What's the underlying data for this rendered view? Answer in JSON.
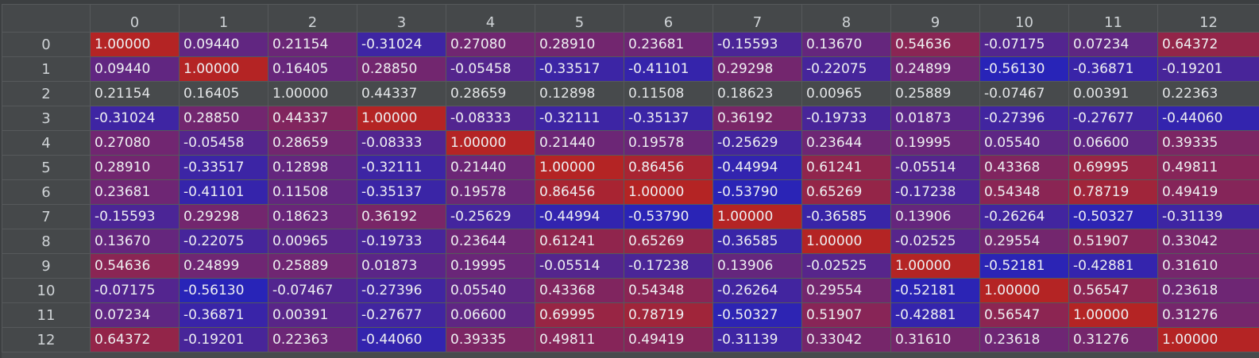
{
  "matrix": {
    "columns": [
      "0",
      "1",
      "2",
      "3",
      "4",
      "5",
      "6",
      "7",
      "8",
      "9",
      "10",
      "11",
      "12"
    ],
    "row_index": [
      "0",
      "1",
      "2",
      "3",
      "4",
      "5",
      "6",
      "7",
      "8",
      "9",
      "10",
      "11",
      "12"
    ],
    "uncolored_rows": [
      2
    ],
    "colors": {
      "positive": "#b02424",
      "negative": "#2424b0",
      "neutral_row": "#474a4c",
      "text": "#eef0f2",
      "header_bg": "#45484a",
      "header_text": "#cfd3d6",
      "grid_line": "#56595b"
    },
    "values": [
      [
        "1.00000",
        "0.09440",
        "0.21154",
        "-0.31024",
        "0.27080",
        "0.28910",
        "0.23681",
        "-0.15593",
        "0.13670",
        "0.54636",
        "-0.07175",
        "0.07234",
        "0.64372"
      ],
      [
        "0.09440",
        "1.00000",
        "0.16405",
        "0.28850",
        "-0.05458",
        "-0.33517",
        "-0.41101",
        "0.29298",
        "-0.22075",
        "0.24899",
        "-0.56130",
        "-0.36871",
        "-0.19201"
      ],
      [
        "0.21154",
        "0.16405",
        "1.00000",
        "0.44337",
        "0.28659",
        "0.12898",
        "0.11508",
        "0.18623",
        "0.00965",
        "0.25889",
        "-0.07467",
        "0.00391",
        "0.22363"
      ],
      [
        "-0.31024",
        "0.28850",
        "0.44337",
        "1.00000",
        "-0.08333",
        "-0.32111",
        "-0.35137",
        "0.36192",
        "-0.19733",
        "0.01873",
        "-0.27396",
        "-0.27677",
        "-0.44060"
      ],
      [
        "0.27080",
        "-0.05458",
        "0.28659",
        "-0.08333",
        "1.00000",
        "0.21440",
        "0.19578",
        "-0.25629",
        "0.23644",
        "0.19995",
        "0.05540",
        "0.06600",
        "0.39335"
      ],
      [
        "0.28910",
        "-0.33517",
        "0.12898",
        "-0.32111",
        "0.21440",
        "1.00000",
        "0.86456",
        "-0.44994",
        "0.61241",
        "-0.05514",
        "0.43368",
        "0.69995",
        "0.49811"
      ],
      [
        "0.23681",
        "-0.41101",
        "0.11508",
        "-0.35137",
        "0.19578",
        "0.86456",
        "1.00000",
        "-0.53790",
        "0.65269",
        "-0.17238",
        "0.54348",
        "0.78719",
        "0.49419"
      ],
      [
        "-0.15593",
        "0.29298",
        "0.18623",
        "0.36192",
        "-0.25629",
        "-0.44994",
        "-0.53790",
        "1.00000",
        "-0.36585",
        "0.13906",
        "-0.26264",
        "-0.50327",
        "-0.31139"
      ],
      [
        "0.13670",
        "-0.22075",
        "0.00965",
        "-0.19733",
        "0.23644",
        "0.61241",
        "0.65269",
        "-0.36585",
        "1.00000",
        "-0.02525",
        "0.29554",
        "0.51907",
        "0.33042"
      ],
      [
        "0.54636",
        "0.24899",
        "0.25889",
        "0.01873",
        "0.19995",
        "-0.05514",
        "-0.17238",
        "0.13906",
        "-0.02525",
        "1.00000",
        "-0.52181",
        "-0.42881",
        "0.31610"
      ],
      [
        "-0.07175",
        "-0.56130",
        "-0.07467",
        "-0.27396",
        "0.05540",
        "0.43368",
        "0.54348",
        "-0.26264",
        "0.29554",
        "-0.52181",
        "1.00000",
        "0.56547",
        "0.23618"
      ],
      [
        "0.07234",
        "-0.36871",
        "0.00391",
        "-0.27677",
        "0.06600",
        "0.69995",
        "0.78719",
        "-0.50327",
        "0.51907",
        "-0.42881",
        "0.56547",
        "1.00000",
        "0.31276"
      ],
      [
        "0.64372",
        "-0.19201",
        "0.22363",
        "-0.44060",
        "0.39335",
        "0.49811",
        "0.49419",
        "-0.31139",
        "0.33042",
        "0.31610",
        "0.23618",
        "0.31276",
        "1.00000"
      ]
    ]
  }
}
